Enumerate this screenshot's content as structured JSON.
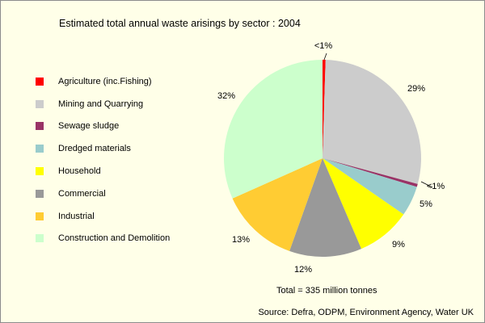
{
  "chart_data": {
    "type": "pie",
    "title": "Estimated total annual waste arisings by sector : 2004",
    "categories": [
      "Agriculture (inc.Fishing)",
      "Mining and Quarrying",
      "Sewage sludge",
      "Dredged materials",
      "Household",
      "Commercial",
      "Industrial",
      "Construction and Demolition"
    ],
    "values": [
      0.5,
      29,
      0.5,
      5,
      9,
      12,
      13,
      32
    ],
    "data_labels": [
      "<1%",
      "29%",
      "<1%",
      "5%",
      "9%",
      "12%",
      "13%",
      "32%"
    ],
    "colors": [
      "#ff0000",
      "#cccccc",
      "#993366",
      "#99cccc",
      "#ffff00",
      "#999999",
      "#ffcc33",
      "#ccffcc"
    ],
    "legend_position": "left",
    "annotation": "Total = 335 million tonnes",
    "source": "Source: Defra, ODPM, Environment Agency, Water UK"
  }
}
